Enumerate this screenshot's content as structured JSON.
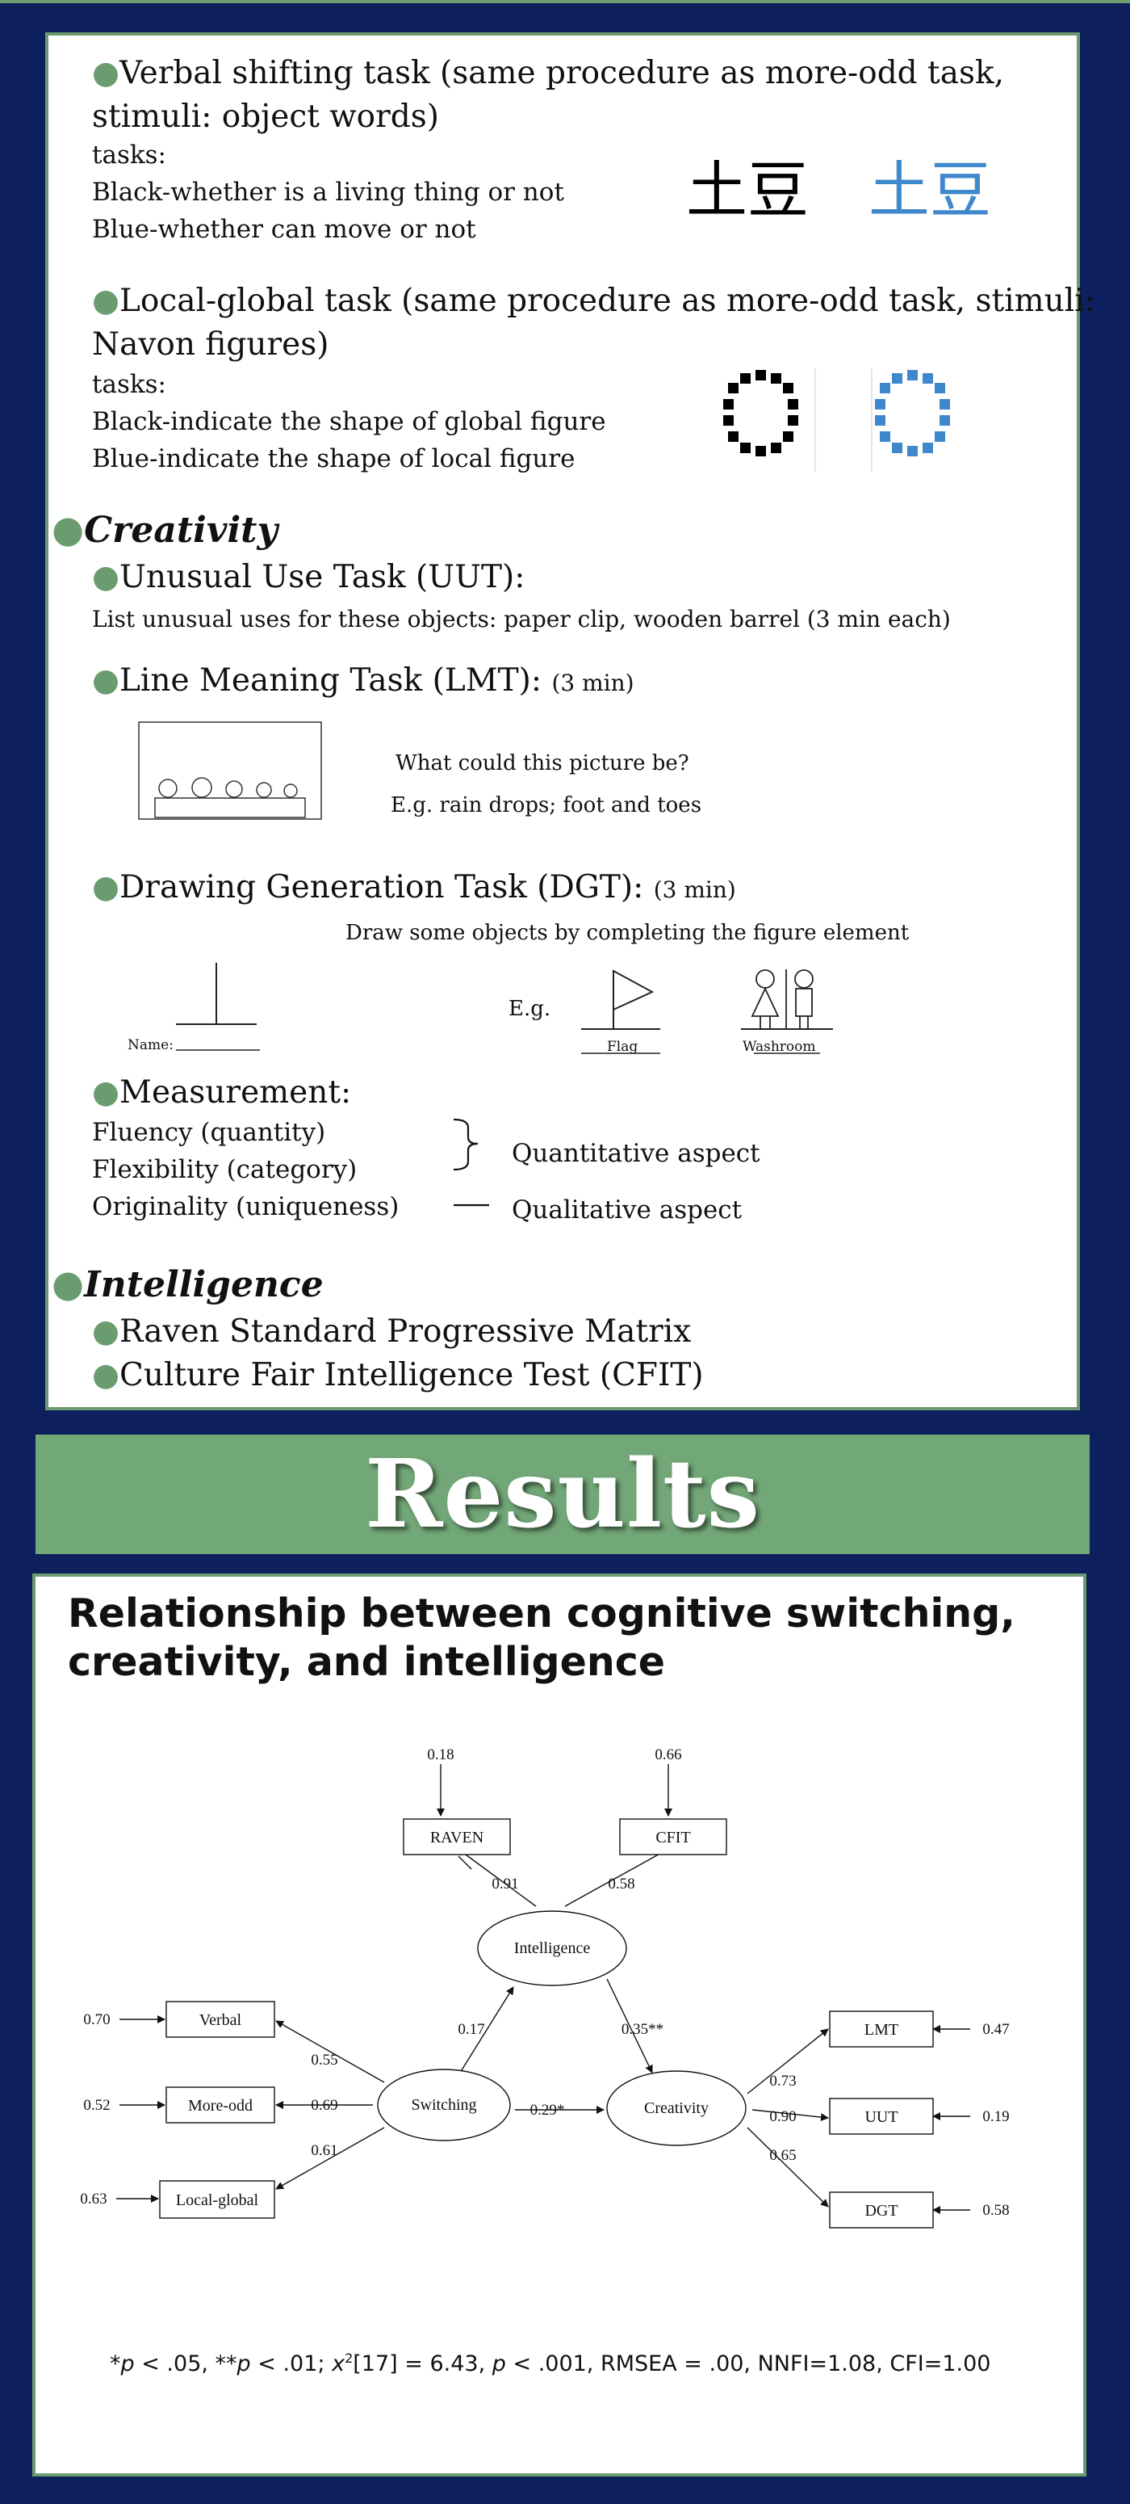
{
  "methods": {
    "verbal": {
      "heading": "Verbal shifting task (same procedure as more-odd task,",
      "heading_cont": "stimuli: object words)",
      "tasks_label": "tasks:",
      "line1": "Black-whether is a living thing or not",
      "line2": "Blue-whether can move or not",
      "word_black": "土豆",
      "word_blue": "土豆"
    },
    "local_global": {
      "heading": "Local-global task (same procedure as more-odd task, stimuli:",
      "heading_cont": "Navon figures)",
      "tasks_label": "tasks:",
      "line1": "Black-indicate the shape of global figure",
      "line2": "Blue-indicate the shape of local figure"
    },
    "creativity": {
      "title": "Creativity",
      "uut_heading": "Unusual Use Task (UUT):",
      "uut_text": "List unusual uses for these objects: paper clip, wooden barrel (3 min each)",
      "lmt_heading": "Line Meaning Task (LMT):",
      "lmt_time": "(3 min)",
      "lmt_question": "What could this picture be?",
      "lmt_example": "E.g. rain drops; foot and toes",
      "dgt_heading": "Drawing Generation Task (DGT):",
      "dgt_time": "(3 min)",
      "dgt_instruction": "Draw some objects by completing the figure element",
      "dgt_eg": "E.g.",
      "dgt_name_label": "Name:",
      "dgt_flag_label": "Flag",
      "dgt_washroom_label": "Washroom",
      "measurement_heading": "Measurement:",
      "fluency": "Fluency (quantity)",
      "flexibility": "Flexibility (category)",
      "originality": "Originality (uniqueness)",
      "quantitative": "Quantitative aspect",
      "qualitative": "Qualitative aspect"
    },
    "intelligence": {
      "title": "Intelligence",
      "item1": "Raven Standard Progressive Matrix",
      "item2": "Culture Fair Intelligence Test (CFIT)"
    }
  },
  "results": {
    "banner": "Results",
    "title_line1": "Relationship between cognitive switching,",
    "title_line2": "creativity, and intelligence",
    "model": {
      "nodes": {
        "raven": "RAVEN",
        "cfit": "CFIT",
        "intelligence": "Intelligence",
        "verbal": "Verbal",
        "more_odd": "More-odd",
        "local_global": "Local-global",
        "switching": "Switching",
        "creativity": "Creativity",
        "lmt": "LMT",
        "uut": "UUT",
        "dgt": "DGT"
      },
      "errors": {
        "raven": "0.18",
        "cfit": "0.66",
        "verbal": "0.70",
        "more_odd": "0.52",
        "local_global": "0.63",
        "lmt": "0.47",
        "uut": "0.19",
        "dgt": "0.58"
      },
      "loadings": {
        "raven": "0.91",
        "cfit": "0.58",
        "verbal": "0.55",
        "more_odd": "0.69",
        "local_global": "0.61",
        "lmt": "0.73",
        "uut": "0.90",
        "dgt": "0.65"
      },
      "paths": {
        "switching_intelligence": "0.17",
        "intelligence_creativity": "0.35**",
        "switching_creativity": "0.29*"
      }
    },
    "note": {
      "p1": "p",
      "sig1": " < .05, **",
      "p2": "p",
      "sig2": " < .01; ",
      "chi": "x",
      "sup": "2",
      "df": "[17] = 6.43, ",
      "p3": "p",
      "rest": " < .001, RMSEA = .00, NNFI=1.08, CFI=1.00",
      "star": "*"
    }
  }
}
